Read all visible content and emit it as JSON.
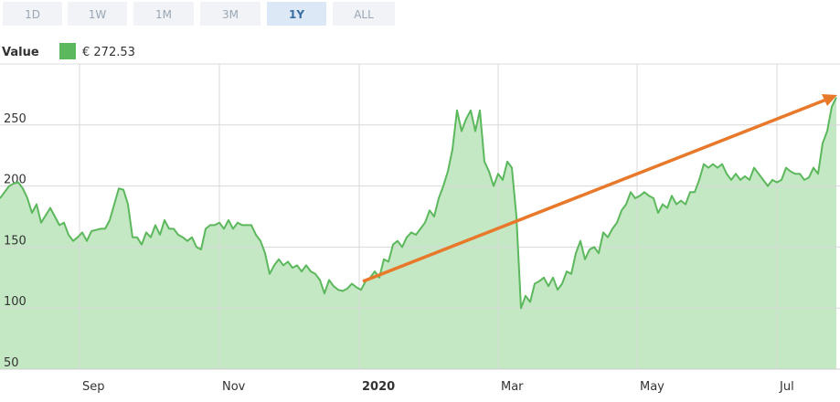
{
  "chart_data": {
    "type": "area",
    "range_buttons": [
      "1D",
      "1W",
      "1M",
      "3M",
      "1Y",
      "ALL"
    ],
    "active_button": "1Y",
    "current_value_label": "€ 272.53",
    "series": [
      {
        "name": "Value",
        "color": "#5cb85c",
        "fill": "#c4e7c4",
        "values": [
          190,
          195,
          200,
          202,
          203,
          198,
          190,
          178,
          185,
          170,
          176,
          182,
          175,
          168,
          170,
          160,
          155,
          158,
          162,
          155,
          163,
          164,
          165,
          165,
          172,
          185,
          198,
          197,
          185,
          158,
          158,
          152,
          162,
          158,
          168,
          160,
          172,
          165,
          165,
          160,
          158,
          155,
          158,
          150,
          148,
          165,
          168,
          168,
          170,
          165,
          172,
          165,
          170,
          168,
          168,
          168,
          160,
          155,
          145,
          128,
          135,
          140,
          135,
          138,
          133,
          135,
          130,
          135,
          130,
          128,
          123,
          112,
          123,
          118,
          115,
          114,
          116,
          120,
          117,
          115,
          122,
          125,
          130,
          125,
          140,
          138,
          152,
          155,
          150,
          158,
          162,
          160,
          165,
          170,
          180,
          175,
          190,
          200,
          212,
          230,
          262,
          245,
          255,
          262,
          245,
          262,
          220,
          212,
          200,
          210,
          205,
          220,
          215,
          175,
          100,
          110,
          105,
          120,
          122,
          125,
          118,
          125,
          115,
          120,
          130,
          128,
          145,
          155,
          140,
          148,
          150,
          145,
          162,
          158,
          165,
          170,
          180,
          185,
          195,
          190,
          192,
          195,
          192,
          190,
          178,
          185,
          182,
          192,
          185,
          188,
          185,
          195,
          195,
          205,
          218,
          215,
          218,
          215,
          218,
          210,
          205,
          210,
          205,
          208,
          205,
          215,
          210,
          205,
          200,
          205,
          203,
          205,
          215,
          212,
          210,
          210,
          205,
          207,
          215,
          210,
          235,
          245,
          265,
          272.53
        ]
      }
    ],
    "xlim": [
      0,
      183
    ],
    "xticks": [
      {
        "value": 17.4,
        "label": "Sep"
      },
      {
        "value": 48,
        "label": "Nov"
      },
      {
        "value": 78.6,
        "label": "2020"
      },
      {
        "value": 109,
        "label": "Mar"
      },
      {
        "value": 139.4,
        "label": "May"
      },
      {
        "value": 170,
        "label": "Jul"
      }
    ],
    "ylim": [
      50,
      300
    ],
    "yticks": [
      50,
      100,
      150,
      200,
      250
    ],
    "grid": true
  }
}
